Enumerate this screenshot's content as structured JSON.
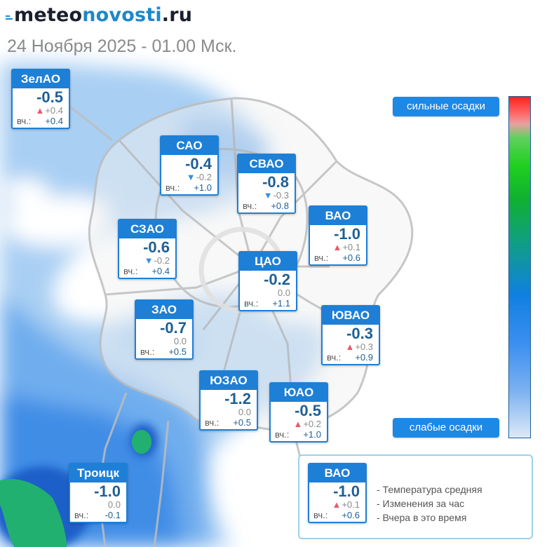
{
  "logo": {
    "part1": "meteo",
    "part2": "novosti",
    "part3": ".ru"
  },
  "subtitle": "24 Ноября 2025 - 01.00 Мск.",
  "colors": {
    "card_border": "#1e7fd6",
    "up_arrow": "#e85a6a",
    "down_arrow": "#3a8ee0",
    "temp_text": "#1e5f95"
  },
  "districts": [
    {
      "name": "ЗелАО",
      "temp": "-0.5",
      "dir": "up",
      "arrow": "▲",
      "change": "+0.4",
      "yesterday_label": "вч.:",
      "yesterday": "+0.4"
    },
    {
      "name": "САО",
      "temp": "-0.4",
      "dir": "down",
      "arrow": "▼",
      "change": "-0.2",
      "yesterday_label": "вч.:",
      "yesterday": "+1.0"
    },
    {
      "name": "СВАО",
      "temp": "-0.8",
      "dir": "down",
      "arrow": "▼",
      "change": "-0.3",
      "yesterday_label": "вч.:",
      "yesterday": "+0.8"
    },
    {
      "name": "ВАО",
      "temp": "-1.0",
      "dir": "up",
      "arrow": "▲",
      "change": "+0.1",
      "yesterday_label": "вч.:",
      "yesterday": "+0.6"
    },
    {
      "name": "СЗАО",
      "temp": "-0.6",
      "dir": "down",
      "arrow": "▼",
      "change": "-0.2",
      "yesterday_label": "вч.:",
      "yesterday": "+0.4"
    },
    {
      "name": "ЦАО",
      "temp": "-0.2",
      "dir": "none",
      "arrow": "",
      "change": "0.0",
      "yesterday_label": "вч.:",
      "yesterday": "+1.1"
    },
    {
      "name": "ЗАО",
      "temp": "-0.7",
      "dir": "none",
      "arrow": "",
      "change": "0.0",
      "yesterday_label": "вч.:",
      "yesterday": "+0.5"
    },
    {
      "name": "ЮВАО",
      "temp": "-0.3",
      "dir": "up",
      "arrow": "▲",
      "change": "+0.3",
      "yesterday_label": "вч.:",
      "yesterday": "+0.9"
    },
    {
      "name": "ЮЗАО",
      "temp": "-1.2",
      "dir": "none",
      "arrow": "",
      "change": "0.0",
      "yesterday_label": "вч.:",
      "yesterday": "+0.5"
    },
    {
      "name": "ЮАО",
      "temp": "-0.5",
      "dir": "up",
      "arrow": "▲",
      "change": "+0.2",
      "yesterday_label": "вч.:",
      "yesterday": "+1.0"
    },
    {
      "name": "Троицк",
      "temp": "-1.0",
      "dir": "none",
      "arrow": "",
      "change": "0.0",
      "yesterday_label": "вч.:",
      "yesterday": "-0.1"
    }
  ],
  "scale": {
    "top_label": "сильные осадки",
    "bottom_label": "слабые осадки"
  },
  "legend": {
    "sample": {
      "name": "ВАО",
      "temp": "-1.0",
      "dir": "up",
      "arrow": "▲",
      "change": "+0.1",
      "yesterday_label": "вч.:",
      "yesterday": "+0.6"
    },
    "items": [
      "- Температура средняя",
      "- Изменения за час",
      "- Вчера в это время"
    ]
  }
}
